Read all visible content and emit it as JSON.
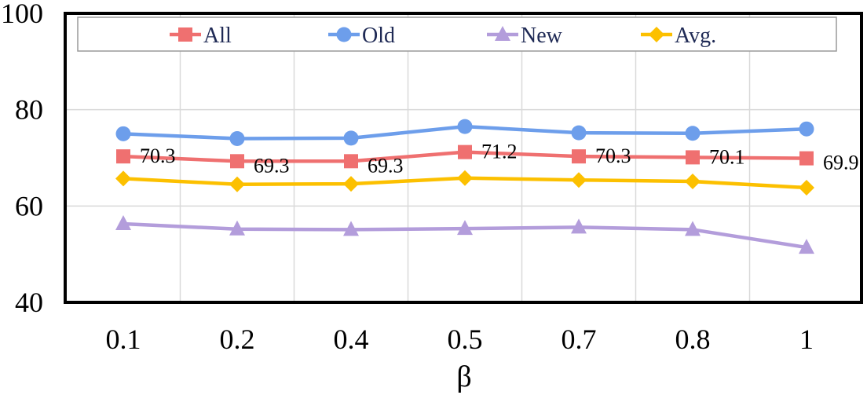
{
  "chart_data": {
    "type": "line",
    "title": "",
    "xlabel": "β",
    "ylabel": "",
    "categories": [
      "0.1",
      "0.2",
      "0.4",
      "0.5",
      "0.7",
      "0.8",
      "1"
    ],
    "ylim": [
      40,
      100
    ],
    "yticks": [
      40,
      60,
      80,
      100
    ],
    "grid": true,
    "legend_position": "top",
    "series": [
      {
        "name": "All",
        "color": "#ef7070",
        "marker": "square",
        "values": [
          70.3,
          69.3,
          69.3,
          71.2,
          70.3,
          70.1,
          69.9
        ],
        "labels": [
          "70.3",
          "69.3",
          "69.3",
          "71.2",
          "70.3",
          "70.1",
          "69.9"
        ]
      },
      {
        "name": "Old",
        "color": "#6d9eeb",
        "marker": "circle",
        "values": [
          75.0,
          74.0,
          74.1,
          76.5,
          75.2,
          75.1,
          76.0
        ]
      },
      {
        "name": "New",
        "color": "#b39ddb",
        "marker": "triangle",
        "values": [
          56.3,
          55.2,
          55.1,
          55.3,
          55.6,
          55.1,
          51.4
        ]
      },
      {
        "name": "Avg.",
        "color": "#fcc000",
        "marker": "diamond",
        "values": [
          65.7,
          64.5,
          64.6,
          65.8,
          65.4,
          65.1,
          63.8
        ]
      }
    ]
  }
}
